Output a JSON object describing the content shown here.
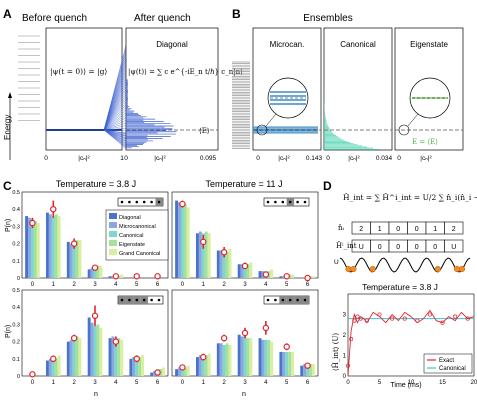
{
  "panels": {
    "A": {
      "letter": "A",
      "before_title": "Before quench",
      "after_title": "After quench",
      "ylabel": "Energy",
      "subpanel_label": "Diagonal",
      "eq_before": "|ψ(t = 0)⟩ = |g⟩",
      "eq_after": "|ψ(t)⟩ = ∑ c e^{-iE_n t/ℏ} c_n|n⟩",
      "expect_label": "⟨E⟩",
      "x_before_ticks": [
        "0",
        "|cₙ|²",
        "1"
      ],
      "x_after_ticks": [
        "0",
        "|cₙ|²",
        "0.095"
      ]
    },
    "B": {
      "letter": "B",
      "title": "Ensembles",
      "labels": [
        "Microcan.",
        "Canonical",
        "Eigenstate"
      ],
      "x_ticks": [
        [
          "0",
          "|cₙ|²",
          "0.143"
        ],
        [
          "0",
          "|cₙ|²",
          "0.034"
        ],
        [
          "0",
          "|cₙ|²",
          ""
        ]
      ],
      "eig_label": "E = ⟨E⟩",
      "colors": {
        "micro": "#3b8bc7",
        "canonical": "#5fd6b8",
        "eigenstate": "#9adf7a"
      }
    },
    "C": {
      "letter": "C",
      "title_left": "Temperature = 3.8 J",
      "title_right": "Temperature = 11 J",
      "ylabel": "P(n)",
      "xlabel": "n",
      "legend": [
        "Diagonal",
        "Microcanonical",
        "Canonical",
        "Eigenstate",
        "Grand Canonical"
      ],
      "colors": [
        "#4a74c9",
        "#8aa7e2",
        "#7fd7c9",
        "#a6e19b",
        "#d8ef9f"
      ],
      "marker_color": "#e0242f",
      "x_ticks": [
        "0",
        "1",
        "2",
        "3",
        "4",
        "5",
        "6"
      ],
      "y_ticks": [
        "0",
        "0.1",
        "0.2",
        "0.3",
        "0.4",
        "0.5"
      ]
    },
    "D": {
      "letter": "D",
      "hamiltonian": "Ĥ_int = ∑ Ĥ^i_int = U/2 ∑ n̂_i(n̂_i − 1)",
      "row1_label": "n̂ᵢ",
      "row1_values": [
        "2",
        "1",
        "0",
        "0",
        "1",
        "2"
      ],
      "row2_label": "Ĥⁱ_int",
      "row2_values": [
        "U",
        "0",
        "0",
        "0",
        "0",
        "U"
      ],
      "u_label": "U",
      "title": "Temperature = 3.8 J",
      "ylabel": "⟨Ĥ_int⟩ (U)",
      "xlabel": "Time (ms)",
      "x_ticks": [
        "0",
        "5",
        "10",
        "15",
        "20"
      ],
      "y_ticks": [
        "0",
        "1",
        "2",
        "3"
      ],
      "legend": [
        "Exact",
        "Canonical"
      ],
      "colors": {
        "exact": "#e0242f",
        "canonical": "#3fc0c8"
      }
    }
  },
  "chart_data": [
    {
      "type": "bar",
      "title": "Temperature = 3.8 J",
      "xlabel": "n",
      "ylabel": "P(n)",
      "ylim": [
        0,
        0.5
      ],
      "categories": [
        "0",
        "1",
        "2",
        "3",
        "4",
        "5",
        "6"
      ],
      "series": [
        {
          "name": "Diagonal",
          "values": [
            0.36,
            0.38,
            0.21,
            0.05,
            0.01,
            0.0,
            0.0
          ]
        },
        {
          "name": "Microcanonical",
          "values": [
            0.35,
            0.37,
            0.2,
            0.06,
            0.01,
            0.0,
            0.0
          ]
        },
        {
          "name": "Canonical",
          "values": [
            0.34,
            0.36,
            0.21,
            0.07,
            0.01,
            0.0,
            0.0
          ]
        },
        {
          "name": "Eigenstate",
          "values": [
            0.33,
            0.37,
            0.22,
            0.07,
            0.01,
            0.0,
            0.0
          ]
        },
        {
          "name": "Grand Canonical",
          "values": [
            0.32,
            0.36,
            0.22,
            0.07,
            0.02,
            0.0,
            0.0
          ]
        }
      ],
      "experiment": {
        "values": [
          0.32,
          0.4,
          0.2,
          0.06,
          0.01,
          0.01,
          0.01
        ],
        "errors": [
          0.03,
          0.05,
          0.03,
          0.01,
          0.005,
          0.005,
          0.005
        ]
      }
    },
    {
      "type": "bar",
      "title": "Temperature = 11 J",
      "xlabel": "n",
      "ylabel": "P(n)",
      "ylim": [
        0,
        0.5
      ],
      "categories": [
        "0",
        "1",
        "2",
        "3",
        "4",
        "5",
        "6"
      ],
      "series": [
        {
          "name": "Diagonal",
          "values": [
            0.45,
            0.26,
            0.16,
            0.08,
            0.04,
            0.01,
            0.0
          ]
        },
        {
          "name": "Microcanonical",
          "values": [
            0.44,
            0.27,
            0.16,
            0.08,
            0.04,
            0.01,
            0.0
          ]
        },
        {
          "name": "Canonical",
          "values": [
            0.42,
            0.26,
            0.16,
            0.09,
            0.04,
            0.02,
            0.01
          ]
        },
        {
          "name": "Eigenstate",
          "values": [
            0.43,
            0.27,
            0.15,
            0.08,
            0.04,
            0.02,
            0.01
          ]
        },
        {
          "name": "Grand Canonical",
          "values": [
            0.41,
            0.26,
            0.17,
            0.09,
            0.05,
            0.02,
            0.01
          ]
        }
      ],
      "experiment": {
        "values": [
          0.43,
          0.21,
          0.15,
          0.07,
          0.02,
          0.01,
          0.0
        ],
        "errors": [
          0.02,
          0.04,
          0.03,
          0.01,
          0.005,
          0.005,
          0.005
        ]
      }
    },
    {
      "type": "bar",
      "xlabel": "n",
      "ylabel": "P(n)",
      "ylim": [
        0,
        0.5
      ],
      "categories": [
        "0",
        "1",
        "2",
        "3",
        "4",
        "5",
        "6"
      ],
      "series": [
        {
          "name": "Diagonal",
          "values": [
            0.0,
            0.09,
            0.2,
            0.34,
            0.22,
            0.1,
            0.02
          ]
        },
        {
          "name": "Microcanonical",
          "values": [
            0.0,
            0.1,
            0.21,
            0.31,
            0.23,
            0.11,
            0.03
          ]
        },
        {
          "name": "Canonical",
          "values": [
            0.0,
            0.11,
            0.22,
            0.29,
            0.22,
            0.12,
            0.04
          ]
        },
        {
          "name": "Eigenstate",
          "values": [
            0.0,
            0.1,
            0.23,
            0.3,
            0.22,
            0.11,
            0.04
          ]
        },
        {
          "name": "Grand Canonical",
          "values": [
            0.0,
            0.12,
            0.22,
            0.28,
            0.21,
            0.12,
            0.05
          ]
        }
      ],
      "experiment": {
        "values": [
          0.01,
          0.1,
          0.22,
          0.35,
          0.2,
          0.1,
          0.02
        ],
        "errors": [
          0.01,
          0.02,
          0.02,
          0.06,
          0.03,
          0.02,
          0.01
        ]
      }
    },
    {
      "type": "bar",
      "xlabel": "n",
      "ylabel": "P(n)",
      "ylim": [
        0,
        0.5
      ],
      "categories": [
        "0",
        "1",
        "2",
        "3",
        "4",
        "5",
        "6"
      ],
      "series": [
        {
          "name": "Diagonal",
          "values": [
            0.04,
            0.11,
            0.19,
            0.24,
            0.22,
            0.14,
            0.06
          ]
        },
        {
          "name": "Microcanonical",
          "values": [
            0.05,
            0.12,
            0.19,
            0.23,
            0.21,
            0.14,
            0.07
          ]
        },
        {
          "name": "Canonical",
          "values": [
            0.05,
            0.12,
            0.18,
            0.23,
            0.21,
            0.14,
            0.07
          ]
        },
        {
          "name": "Eigenstate",
          "values": [
            0.05,
            0.12,
            0.19,
            0.22,
            0.21,
            0.14,
            0.07
          ]
        },
        {
          "name": "Grand Canonical",
          "values": [
            0.06,
            0.13,
            0.18,
            0.22,
            0.2,
            0.14,
            0.07
          ]
        }
      ],
      "experiment": {
        "values": [
          0.05,
          0.11,
          0.22,
          0.25,
          0.28,
          0.17,
          0.06
        ],
        "errors": [
          0.01,
          0.02,
          0.02,
          0.03,
          0.04,
          0.02,
          0.01
        ]
      }
    },
    {
      "type": "line",
      "title": "Temperature = 3.8 J",
      "xlabel": "Time (ms)",
      "ylabel": "⟨Ĥ_int⟩ (U)",
      "xlim": [
        0,
        20
      ],
      "ylim": [
        0,
        4
      ],
      "series": [
        {
          "name": "Exact",
          "x": [
            0,
            0.5,
            1,
            1.5,
            2,
            2.5,
            3,
            4,
            5,
            6,
            7,
            8,
            9,
            10,
            11,
            12,
            13,
            14,
            15,
            16,
            17,
            18,
            19,
            20
          ],
          "values": [
            0,
            2.2,
            3.0,
            2.6,
            2.9,
            2.8,
            2.6,
            3.1,
            2.9,
            2.6,
            3.0,
            2.7,
            3.1,
            2.9,
            2.6,
            2.8,
            3.2,
            2.7,
            2.6,
            2.9,
            2.7,
            3.1,
            2.8,
            2.9
          ]
        },
        {
          "name": "Canonical",
          "x": [
            0,
            20
          ],
          "values": [
            2.8,
            2.8
          ]
        }
      ],
      "experiment": {
        "x": [
          0,
          0.5,
          1,
          1.5,
          2,
          3,
          5,
          7,
          9,
          11,
          13,
          15,
          17,
          19
        ],
        "values": [
          0.5,
          1.8,
          2.7,
          2.9,
          2.8,
          2.7,
          3.0,
          2.8,
          2.8,
          2.7,
          3.0,
          2.6,
          2.9,
          2.8
        ]
      }
    }
  ]
}
